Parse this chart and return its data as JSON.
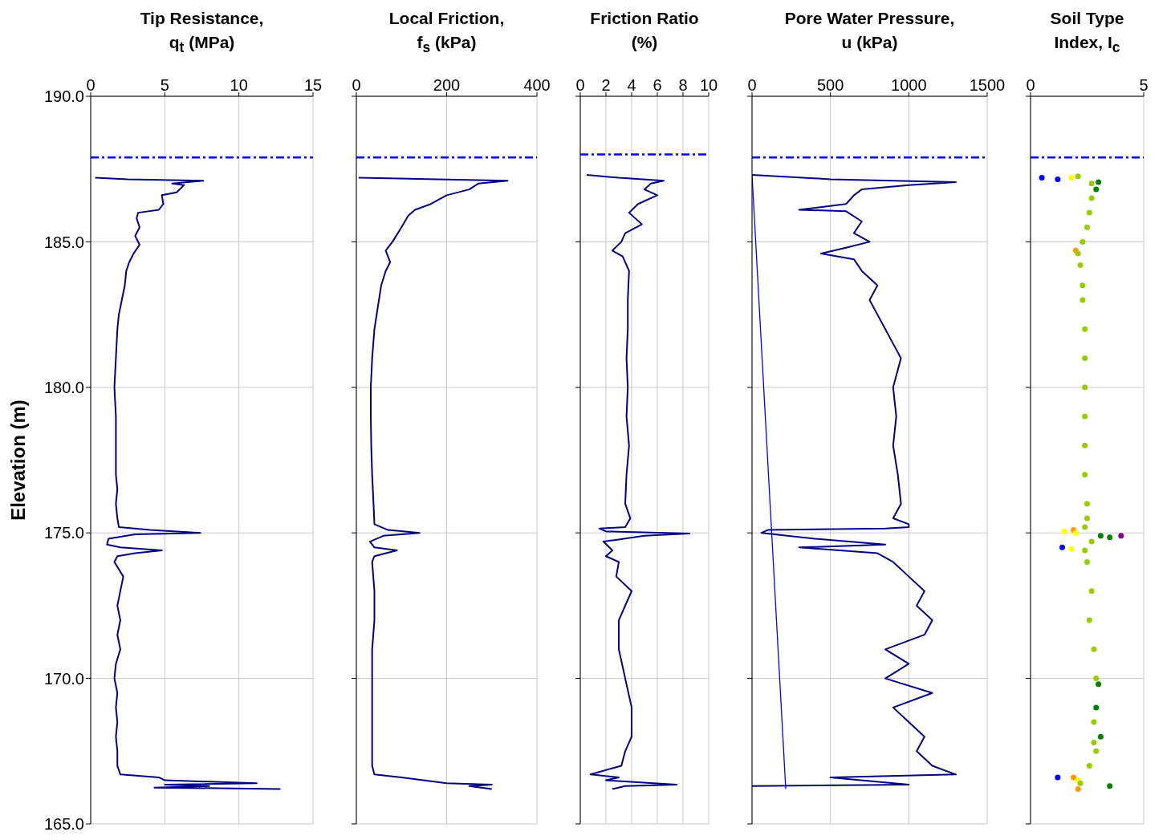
{
  "chart_data": [
    {
      "type": "line",
      "title": "Tip Resistance,\nq$_{t}$ (MPa)",
      "ylabel": "Elevation (m)",
      "xlim": [
        0,
        15
      ],
      "xticks": [
        0,
        5,
        10,
        15
      ],
      "ylim": [
        165,
        190
      ],
      "yticks": [
        {
          "value": 165,
          "label": "165.0"
        },
        {
          "value": 170,
          "label": "170.0"
        },
        {
          "value": 175,
          "label": "175.0"
        },
        {
          "value": 180,
          "label": "180.0"
        },
        {
          "value": 185,
          "label": "185.0"
        },
        {
          "value": 190,
          "label": "190.0"
        }
      ],
      "grid": true,
      "ref_lines": [
        {
          "axis": "y",
          "value": 187.9,
          "color": "#0000ff",
          "line_style": "dashed"
        }
      ],
      "series": [
        {
          "color": "#000080",
          "x": [
            0.3,
            2.5,
            7.6,
            5.5,
            6.3,
            5.8,
            4.8,
            4.9,
            4.6,
            3.2,
            3.1,
            3.3,
            3.0,
            3.3,
            2.9,
            2.6,
            2.4,
            2.3,
            2.1,
            1.9,
            1.8,
            1.7,
            1.6,
            1.7,
            1.7,
            1.7,
            1.8,
            1.7,
            1.8,
            1.9,
            4,
            7.4,
            3,
            1.2,
            1.1,
            2,
            4.8,
            3,
            1.8,
            1.6,
            2.2,
            2,
            1.8,
            2,
            1.8,
            2,
            1.7,
            1.6,
            1.8,
            1.7,
            1.8,
            1.7,
            1.8,
            1.8,
            2,
            4.6,
            5,
            11.2,
            5,
            8,
            4.3,
            12.8
          ],
          "values": [
            187.2,
            187.15,
            187.1,
            187.0,
            186.95,
            186.7,
            186.6,
            186.3,
            186.1,
            186.0,
            185.8,
            185.5,
            185.2,
            184.9,
            184.6,
            184.3,
            184.0,
            183.5,
            183.0,
            182.5,
            182.0,
            181.0,
            180.0,
            179.0,
            178.0,
            177.0,
            176.5,
            176.0,
            175.5,
            175.2,
            175.1,
            175.0,
            174.95,
            174.8,
            174.6,
            174.5,
            174.4,
            174.3,
            174.2,
            174.0,
            173.5,
            173,
            172.5,
            172,
            171.5,
            171,
            170.5,
            170,
            169.5,
            169,
            168.5,
            168,
            167.5,
            167,
            166.7,
            166.6,
            166.5,
            166.4,
            166.35,
            166.3,
            166.25,
            166.2
          ]
        }
      ]
    },
    {
      "type": "line",
      "title": "Local Friction,\nf$_{s}$ (kPa)",
      "xlim": [
        0,
        400
      ],
      "xticks": [
        0,
        200,
        400
      ],
      "ylim": [
        165,
        190
      ],
      "yticks": [
        165,
        170,
        175,
        180,
        185,
        190
      ],
      "tick_labels": "x",
      "grid": true,
      "ref_lines": [
        {
          "axis": "y",
          "value": 187.9,
          "color": "#0000ff",
          "line_style": "dashed"
        }
      ],
      "series": [
        {
          "color": "#000080",
          "x": [
            5,
            335,
            270,
            250,
            200,
            165,
            130,
            115,
            100,
            80,
            65,
            75,
            65,
            55,
            50,
            40,
            35,
            32,
            32,
            33,
            35,
            38,
            40,
            70,
            140,
            60,
            30,
            40,
            90,
            40,
            35,
            40,
            40,
            35,
            35,
            35,
            35,
            35,
            40,
            100,
            200,
            300,
            250,
            300
          ],
          "values": [
            187.2,
            187.1,
            187.0,
            186.8,
            186.6,
            186.3,
            186.1,
            185.9,
            185.5,
            185.0,
            184.7,
            184.3,
            184,
            183.5,
            183,
            182,
            181,
            180,
            179,
            178,
            177,
            176,
            175.3,
            175.1,
            175.0,
            174.9,
            174.7,
            174.5,
            174.4,
            174.2,
            174,
            173,
            172,
            171,
            170,
            169,
            168,
            167,
            166.7,
            166.6,
            166.4,
            166.35,
            166.3,
            166.2
          ]
        }
      ]
    },
    {
      "type": "line",
      "title": "Friction Ratio\n(%)",
      "xlim": [
        0,
        10
      ],
      "xticks": [
        0,
        2,
        4,
        6,
        8,
        10
      ],
      "ylim": [
        165,
        190
      ],
      "yticks": [
        165,
        170,
        175,
        180,
        185,
        190
      ],
      "tick_labels": "x",
      "grid": true,
      "ref_lines": [
        {
          "axis": "y",
          "value": 188,
          "color": "#0000ff",
          "line_style": "dashed"
        }
      ],
      "series": [
        {
          "color": "#000080",
          "x": [
            0.5,
            3,
            6.5,
            5.5,
            5,
            6,
            4.5,
            3.8,
            4.8,
            3.5,
            3.2,
            2.5,
            3.3,
            3.8,
            3.7,
            3.7,
            3.6,
            3.7,
            3.6,
            3.8,
            3.6,
            3.5,
            3.9,
            3.5,
            1.5,
            2,
            8.5,
            5,
            1.8,
            2.5,
            2,
            3,
            2.8,
            4,
            3,
            3,
            3.5,
            4,
            4,
            3.5,
            3.2,
            0.8,
            3,
            2,
            7.5,
            3.5,
            2.5
          ],
          "values": [
            187.3,
            187.2,
            187.1,
            187.0,
            186.8,
            186.6,
            186.3,
            186,
            185.6,
            185.3,
            185,
            184.7,
            184.5,
            184,
            183,
            182,
            181,
            180,
            179,
            178,
            177,
            176,
            175.5,
            175.2,
            175.15,
            175.05,
            174.98,
            174.9,
            174.7,
            174.4,
            174.2,
            174,
            173.5,
            173,
            172,
            171,
            170,
            169,
            168,
            167.5,
            167,
            166.7,
            166.6,
            166.5,
            166.35,
            166.3,
            166.2
          ]
        }
      ]
    },
    {
      "type": "line",
      "title": "Pore Water Pressure,\nu (kPa)",
      "xlim": [
        0,
        1500
      ],
      "xticks": [
        0,
        500,
        1000,
        1500
      ],
      "ylim": [
        165,
        190
      ],
      "yticks": [
        165,
        170,
        175,
        180,
        185,
        190
      ],
      "tick_labels": "x",
      "grid": true,
      "ref_lines": [
        {
          "axis": "y",
          "value": 187.9,
          "color": "#0000ff",
          "line_style": "dashed"
        }
      ],
      "series": [
        {
          "color": "#000080",
          "x": [
            0,
            500,
            1300,
            1000,
            700,
            650,
            600,
            300,
            600,
            700,
            650,
            750,
            600,
            440,
            650,
            700,
            800,
            750,
            800,
            850,
            900,
            950,
            900,
            920,
            900,
            930,
            950,
            900,
            1000,
            1000,
            850,
            100,
            60,
            400,
            850,
            300,
            800,
            900,
            1000,
            1100,
            1050,
            1150,
            1100,
            850,
            1000,
            850,
            1150,
            900,
            1000,
            1100,
            1050,
            1150,
            1300,
            500,
            1000,
            0
          ],
          "values": [
            187.3,
            187.15,
            187.05,
            186.95,
            186.8,
            186.6,
            186.3,
            186.1,
            186.05,
            185.7,
            185.3,
            185,
            184.8,
            184.6,
            184.4,
            184,
            183.5,
            183,
            182.5,
            182,
            181.5,
            181,
            180,
            179,
            178,
            177,
            176,
            175.5,
            175.3,
            175.2,
            175.15,
            175.1,
            175,
            174.8,
            174.6,
            174.5,
            174.3,
            174,
            173.5,
            173,
            172.5,
            172,
            171.5,
            171,
            170.5,
            170,
            169.5,
            169,
            168.5,
            168,
            167.5,
            167,
            166.7,
            166.6,
            166.35,
            166.3
          ]
        },
        {
          "color": "#0000ff",
          "x": [
            0,
            215
          ],
          "values": [
            187.3,
            166.2
          ]
        }
      ]
    },
    {
      "type": "scatter",
      "title": "Soil Type\nIndex, I$_{c}$",
      "xlim": [
        0,
        5
      ],
      "xticks": [
        0,
        5
      ],
      "ylim": [
        165,
        190
      ],
      "yticks": [
        165,
        170,
        175,
        180,
        185,
        190
      ],
      "tick_labels": "x",
      "grid": true,
      "ref_lines": [
        {
          "axis": "y",
          "value": 187.9,
          "color": "#0000ff",
          "line_style": "dashed"
        }
      ],
      "series": [
        {
          "x": [
            0.5,
            1.2,
            1.8,
            2.1,
            3,
            2.7,
            2.9,
            2.7,
            2.6,
            2.5,
            2.3,
            2.0,
            2.1,
            2.2,
            2.3,
            2.3,
            2.4,
            2.4,
            2.4,
            2.4,
            2.4,
            2.4,
            2.5,
            2.5,
            2.4,
            1.9,
            1.5,
            2.0,
            3.1,
            4.0,
            3.5,
            2.7,
            1.4,
            1.8,
            2.4,
            2.5,
            2.7,
            2.6,
            2.8,
            2.9,
            3.0,
            2.9,
            2.8,
            3.1,
            2.8,
            2.9,
            2.6,
            1.2,
            1.9,
            2.1,
            2.2,
            3.5,
            2.1
          ],
          "values": [
            187.2,
            187.15,
            187.2,
            187.25,
            187.05,
            187.0,
            186.8,
            186.5,
            186,
            185.5,
            185,
            184.7,
            184.6,
            184.2,
            183.5,
            183,
            182,
            181,
            180,
            179,
            178,
            177,
            176,
            175.5,
            175.2,
            175.1,
            175.05,
            175.0,
            174.9,
            174.9,
            174.85,
            174.7,
            174.5,
            174.45,
            174.4,
            174,
            173,
            172,
            171,
            170,
            169.8,
            169,
            168.5,
            168,
            167.8,
            167.5,
            167,
            166.6,
            166.6,
            166.5,
            166.4,
            166.3,
            166.2
          ],
          "colors": [
            "#0000ff",
            "#0000ff",
            "#ffff00",
            "#99cc00",
            "#008000",
            "#99cc00",
            "#008000",
            "#99cc00",
            "#99cc00",
            "#99cc00",
            "#99cc00",
            "#ff9900",
            "#99cc00",
            "#99cc00",
            "#99cc00",
            "#99cc00",
            "#99cc00",
            "#99cc00",
            "#99cc00",
            "#99cc00",
            "#99cc00",
            "#99cc00",
            "#99cc00",
            "#99cc00",
            "#99cc00",
            "#ff9900",
            "#ffff00",
            "#ffff00",
            "#008000",
            "#800080",
            "#008000",
            "#99cc00",
            "#0000ff",
            "#ffff00",
            "#99cc00",
            "#99cc00",
            "#99cc00",
            "#99cc00",
            "#99cc00",
            "#99cc00",
            "#008000",
            "#008000",
            "#99cc00",
            "#008000",
            "#99cc00",
            "#99cc00",
            "#99cc00",
            "#0000ff",
            "#ff9900",
            "#ffff00",
            "#99cc00",
            "#008000",
            "#ff9900"
          ]
        }
      ]
    }
  ]
}
